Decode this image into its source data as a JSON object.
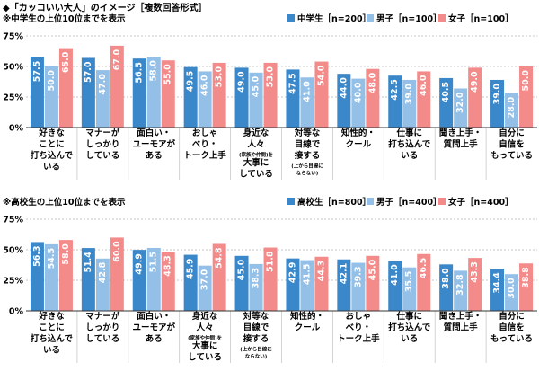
{
  "header": {
    "title": "◆「カッコいい大人」のイメージ［複数回答形式］"
  },
  "colors": {
    "total": "#3a87c9",
    "male": "#94c0e8",
    "female": "#f48b8b",
    "grid": "#b5b5b5",
    "axis": "#333333"
  },
  "chart_data": [
    {
      "type": "bar",
      "title": "※中学生の上位10位までを表示",
      "ylim": [
        0,
        75
      ],
      "yticks": [
        0,
        25,
        50,
        75
      ],
      "tick_suffix": "%",
      "series": [
        {
          "name": "中学生［n=200］",
          "values": [
            57.5,
            57.0,
            56.5,
            49.5,
            49.0,
            47.5,
            44.0,
            42.5,
            40.5,
            39.0
          ]
        },
        {
          "name": "男子［n=100］",
          "values": [
            50.0,
            47.0,
            58.0,
            46.0,
            45.0,
            41.0,
            40.0,
            39.0,
            32.0,
            28.0
          ]
        },
        {
          "name": "女子［n=100］",
          "values": [
            65.0,
            67.0,
            55.0,
            53.0,
            53.0,
            54.0,
            48.0,
            46.0,
            49.0,
            50.0
          ]
        }
      ],
      "labels": [
        "57.5",
        "50.0",
        "65.0",
        "57.0",
        "47.0",
        "67.0",
        "56.5",
        "58.0",
        "55.0",
        "49.5",
        "46.0",
        "53.0",
        "49.0",
        "45.0",
        "53.0",
        "47.5",
        "41.0",
        "54.0",
        "44.0",
        "40.0",
        "48.0",
        "42.5",
        "39.0",
        "46.0",
        "40.5",
        "32.0",
        "49.0",
        "39.0",
        "28.0",
        "50.0"
      ],
      "categories": [
        {
          "lines": [
            "好きな",
            "ことに",
            "打ち込んで",
            "いる"
          ]
        },
        {
          "lines": [
            "マナーが",
            "しっかり",
            "している"
          ]
        },
        {
          "lines": [
            "面白い・",
            "ユーモアが",
            "ある"
          ]
        },
        {
          "lines": [
            "おしゃ",
            "べり・",
            "トーク上手"
          ]
        },
        {
          "lines": [
            "身近な",
            "人々"
          ],
          "small": "(家族や仲間)を",
          "after": [
            "大事に",
            "している"
          ]
        },
        {
          "lines": [
            "対等な",
            "目線で",
            "接する"
          ],
          "small": "(上から目線に",
          "small2": "ならない)"
        },
        {
          "lines": [
            "知性的・",
            "クール"
          ]
        },
        {
          "lines": [
            "仕事に",
            "打ち込んで",
            "いる"
          ]
        },
        {
          "lines": [
            "聞き上手・",
            "質問上手"
          ]
        },
        {
          "lines": [
            "自分に",
            "自信を",
            "もっている"
          ]
        }
      ]
    },
    {
      "type": "bar",
      "title": "※高校生の上位10位までを表示",
      "ylim": [
        0,
        75
      ],
      "yticks": [
        0,
        25,
        50,
        75
      ],
      "tick_suffix": "%",
      "series": [
        {
          "name": "高校生［n=800］",
          "values": [
            56.3,
            51.4,
            49.9,
            45.9,
            45.0,
            42.9,
            42.1,
            41.0,
            38.0,
            34.4
          ]
        },
        {
          "name": "男子［n=400］",
          "values": [
            54.5,
            42.8,
            51.5,
            37.0,
            38.3,
            41.5,
            39.3,
            35.5,
            32.8,
            30.0
          ]
        },
        {
          "name": "女子［n=400］",
          "values": [
            58.0,
            60.0,
            48.3,
            54.8,
            51.8,
            44.3,
            45.0,
            46.5,
            43.3,
            38.8
          ]
        }
      ],
      "labels": [
        "56.3",
        "54.5",
        "58.0",
        "51.4",
        "42.8",
        "60.0",
        "49.9",
        "51.5",
        "48.3",
        "45.9",
        "37.0",
        "54.8",
        "45.0",
        "38.3",
        "51.8",
        "42.9",
        "41.5",
        "44.3",
        "42.1",
        "39.3",
        "45.0",
        "41.0",
        "35.5",
        "46.5",
        "38.0",
        "32.8",
        "43.3",
        "34.4",
        "30.0",
        "38.8"
      ],
      "categories": [
        {
          "lines": [
            "好きな",
            "ことに",
            "打ち込んで",
            "いる"
          ]
        },
        {
          "lines": [
            "マナーが",
            "しっかり",
            "している"
          ]
        },
        {
          "lines": [
            "面白い・",
            "ユーモアが",
            "ある"
          ]
        },
        {
          "lines": [
            "身近な",
            "人々"
          ],
          "small": "(家族や仲間)を",
          "after": [
            "大事に",
            "している"
          ]
        },
        {
          "lines": [
            "対等な",
            "目線で",
            "接する"
          ],
          "small": "(上から目線に",
          "small2": "ならない)"
        },
        {
          "lines": [
            "知性的・",
            "クール"
          ]
        },
        {
          "lines": [
            "おしゃ",
            "べり・",
            "トーク上手"
          ]
        },
        {
          "lines": [
            "仕事に",
            "打ち込んで",
            "いる"
          ]
        },
        {
          "lines": [
            "聞き上手・",
            "質問上手"
          ]
        },
        {
          "lines": [
            "自分に",
            "自信を",
            "もっている"
          ]
        }
      ]
    }
  ]
}
